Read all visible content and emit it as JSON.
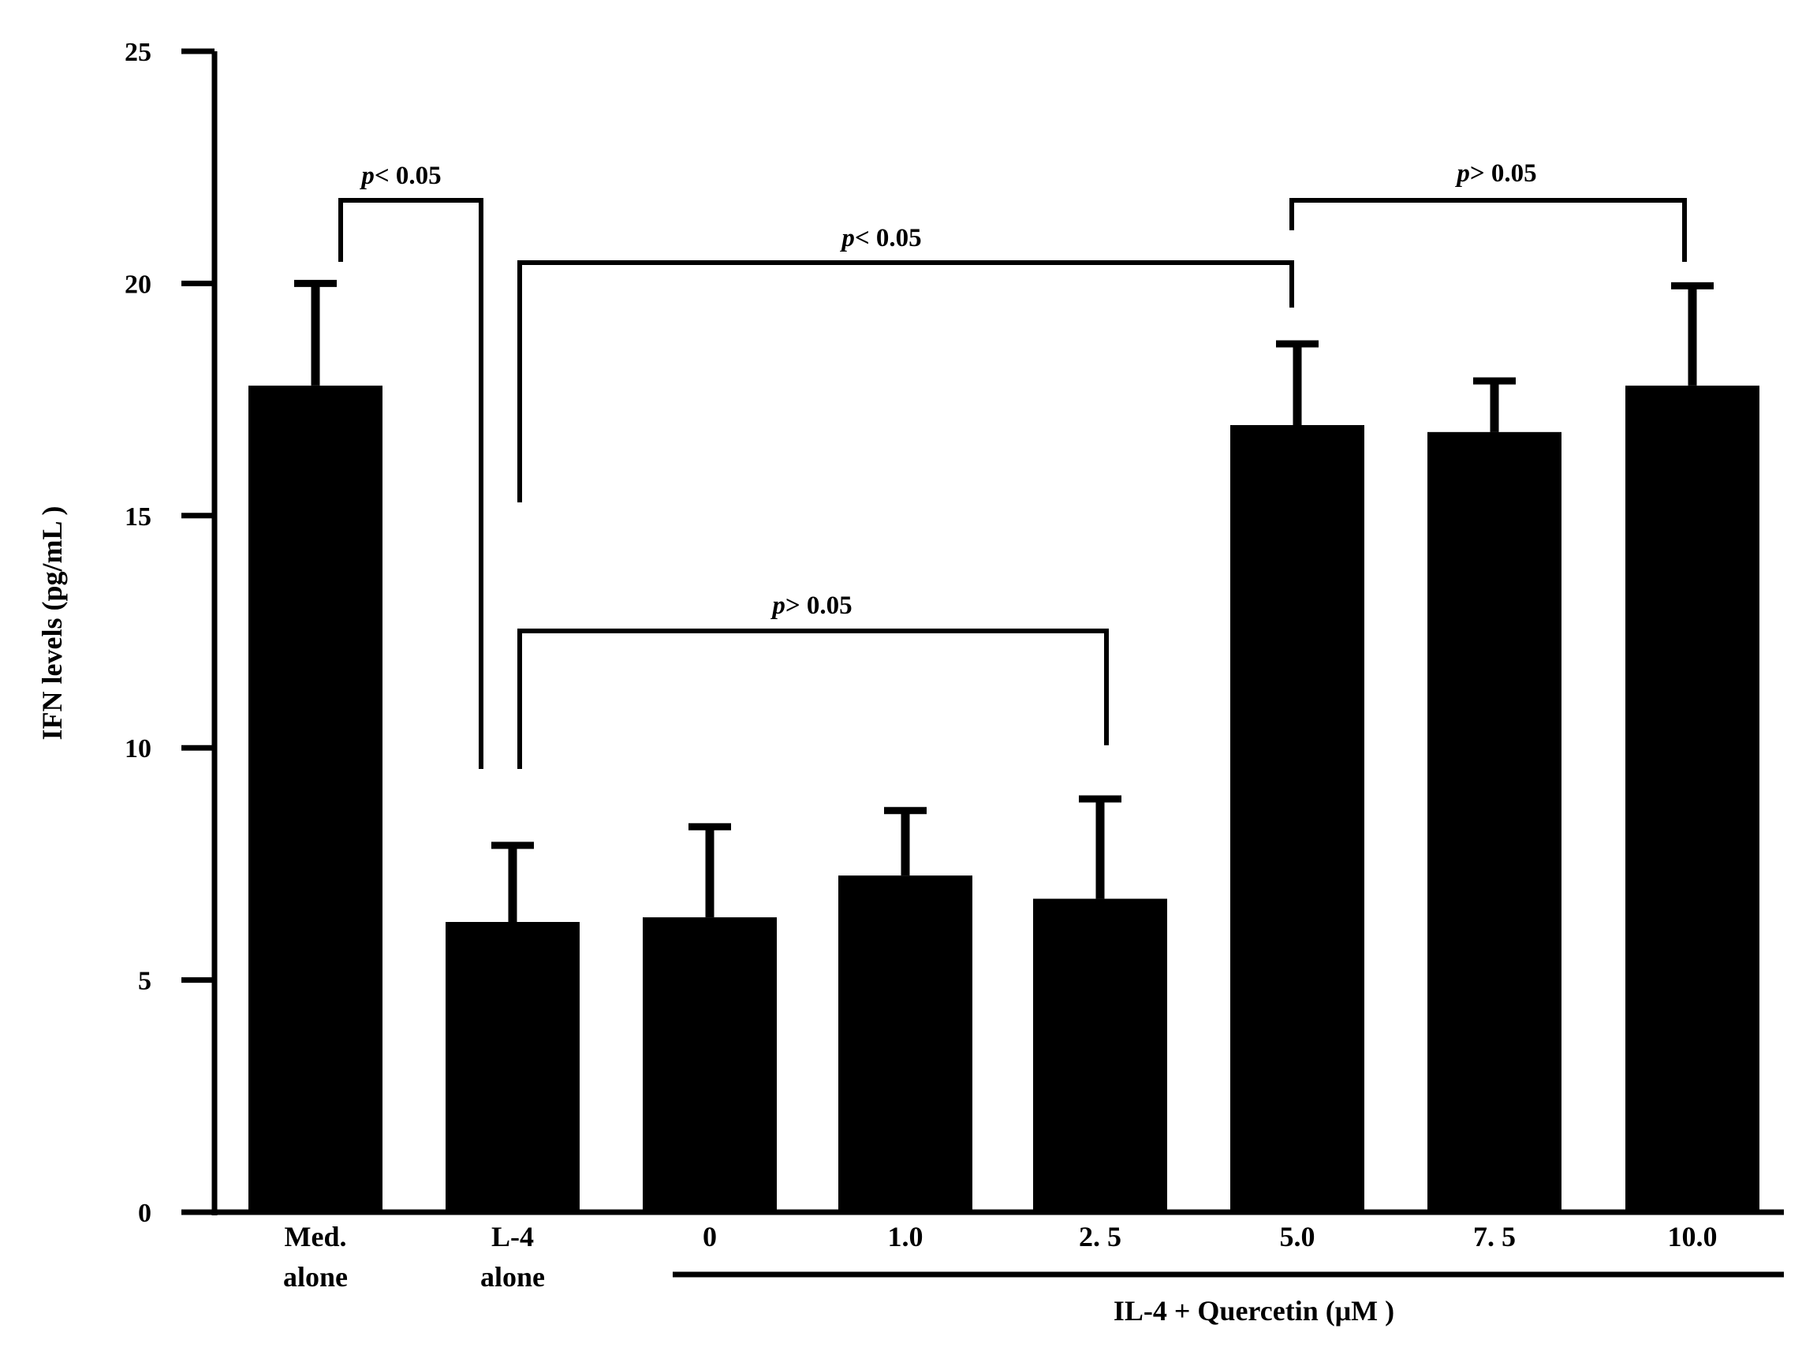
{
  "chart_data": {
    "type": "bar",
    "ylabel": "IFN levels (pg/mL )",
    "ylim": [
      0,
      25
    ],
    "yticks": [
      "0",
      "5",
      "10",
      "15",
      "20",
      "25"
    ],
    "grid": false,
    "legend": "none",
    "bar_color": "#000000",
    "categories": [
      {
        "line1": "Med.",
        "line2": "alone"
      },
      {
        "line1": "L-4",
        "line2": "alone"
      },
      {
        "line1": "0",
        "line2": ""
      },
      {
        "line1": "1.0",
        "line2": ""
      },
      {
        "line1": "2. 5",
        "line2": ""
      },
      {
        "line1": "5.0",
        "line2": ""
      },
      {
        "line1": "7. 5",
        "line2": ""
      },
      {
        "line1": "10.0",
        "line2": ""
      }
    ],
    "values": [
      17.8,
      6.25,
      6.35,
      7.25,
      6.75,
      16.95,
      16.8,
      17.8
    ],
    "errors": [
      2.2,
      1.65,
      1.95,
      1.4,
      2.15,
      1.75,
      1.1,
      2.15
    ],
    "group_label": "IL-4 + Quercetin (μM )",
    "group_from": 2,
    "group_to": 7,
    "comparisons": [
      {
        "p": "p",
        "op": "< 0.05",
        "from": 0,
        "to": 1
      },
      {
        "p": "p",
        "op": "< 0.05",
        "from": 1,
        "to": 5
      },
      {
        "p": "p",
        "op": "> 0.05",
        "from": 1,
        "to": 4
      },
      {
        "p": "p",
        "op": "> 0.05",
        "from": 5,
        "to": 7
      }
    ]
  }
}
